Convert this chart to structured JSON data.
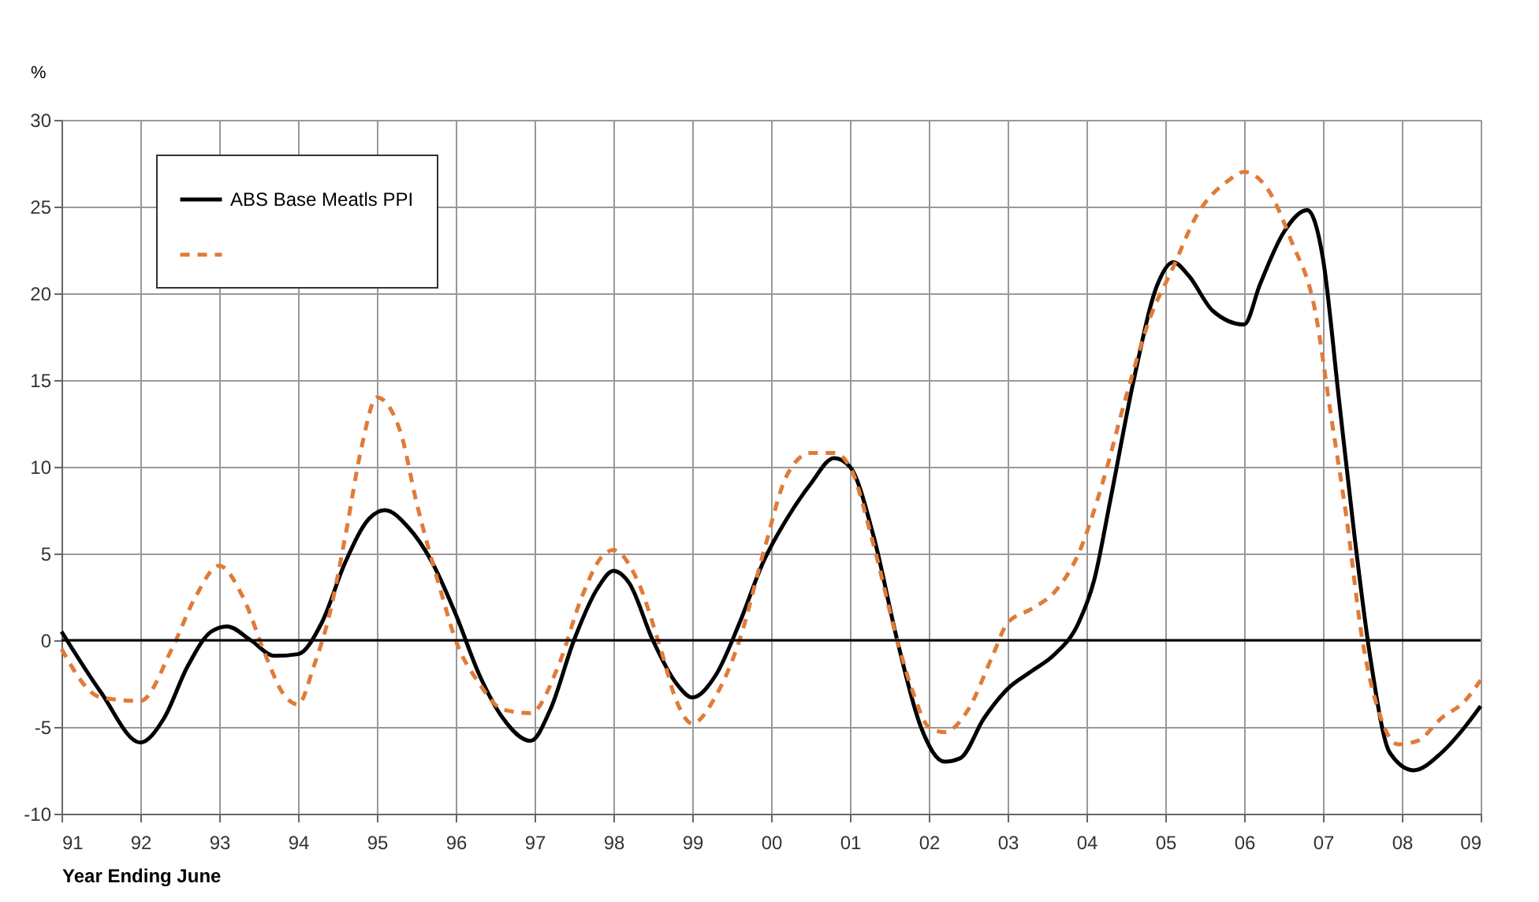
{
  "chart_data": {
    "type": "line",
    "xlabel": "Year Ending June",
    "ylabel": "%",
    "xlim": [
      1991,
      2009
    ],
    "xticks": [
      {
        "value": 1991,
        "label": "91"
      },
      {
        "value": 1992,
        "label": "92"
      },
      {
        "value": 1993,
        "label": "93"
      },
      {
        "value": 1994,
        "label": "94"
      },
      {
        "value": 1995,
        "label": "95"
      },
      {
        "value": 1996,
        "label": "96"
      },
      {
        "value": 1997,
        "label": "97"
      },
      {
        "value": 1998,
        "label": "98"
      },
      {
        "value": 1999,
        "label": "99"
      },
      {
        "value": 2000,
        "label": "00"
      },
      {
        "value": 2001,
        "label": "01"
      },
      {
        "value": 2002,
        "label": "02"
      },
      {
        "value": 2003,
        "label": "03"
      },
      {
        "value": 2004,
        "label": "04"
      },
      {
        "value": 2005,
        "label": "05"
      },
      {
        "value": 2006,
        "label": "06"
      },
      {
        "value": 2007,
        "label": "07"
      },
      {
        "value": 2008,
        "label": "08"
      },
      {
        "value": 2009,
        "label": "09"
      }
    ],
    "ylim": [
      -10,
      30
    ],
    "yticks": [
      -10,
      -5,
      0,
      5,
      10,
      15,
      20,
      25,
      30
    ],
    "grid": true,
    "legend": "top left",
    "marker": "none",
    "ref_lines": [
      {
        "axis": "y",
        "value": 0,
        "color": "#000000"
      }
    ],
    "series": [
      {
        "name": "ABS Base Meatls PPI",
        "color": "#000000",
        "line_style": "solid",
        "x": [
          1991.0,
          1991.5,
          1992.0,
          1992.3,
          1992.6,
          1992.9,
          1993.1,
          1993.4,
          1993.7,
          1994.0,
          1994.3,
          1994.6,
          1994.9,
          1995.1,
          1995.4,
          1995.7,
          1996.0,
          1996.3,
          1996.6,
          1996.95,
          1997.2,
          1997.5,
          1997.8,
          1998.0,
          1998.2,
          1998.5,
          1998.8,
          1999.0,
          1999.3,
          1999.6,
          1999.9,
          2000.2,
          2000.5,
          2000.8,
          2001.0,
          2001.3,
          2001.6,
          2001.9,
          2002.2,
          2002.4,
          2002.7,
          2003.0,
          2003.3,
          2003.6,
          2003.9,
          2004.1,
          2004.3,
          2004.6,
          2004.9,
          2005.1,
          2005.3,
          2005.6,
          2006.0,
          2006.2,
          2006.5,
          2006.8,
          2007.0,
          2007.2,
          2007.4,
          2007.6,
          2007.85,
          2008.15,
          2008.5,
          2008.8,
          2009.0
        ],
        "values": [
          0.5,
          -3,
          -5.9,
          -4.5,
          -1.5,
          0.5,
          0.8,
          0,
          -0.9,
          -0.8,
          1,
          4.5,
          7,
          7.5,
          6.5,
          4.5,
          1.5,
          -2,
          -4.5,
          -5.8,
          -4,
          0,
          3,
          4,
          3.3,
          0,
          -2.5,
          -3.3,
          -2,
          1,
          4.5,
          7,
          9,
          10.5,
          10,
          6,
          0,
          -5,
          -7,
          -6.8,
          -4.5,
          -2.8,
          -1.8,
          -0.8,
          1,
          3.5,
          8,
          15,
          20.5,
          21.8,
          21,
          19,
          18.2,
          20.5,
          23.5,
          24.8,
          22,
          14,
          6,
          -1,
          -6.5,
          -7.5,
          -6.5,
          -5,
          -3.8
        ]
      },
      {
        "color": "#e07b39",
        "line_style": "dashed",
        "x": [
          1991.0,
          1991.5,
          1992.0,
          1992.4,
          1992.7,
          1993.0,
          1993.3,
          1993.6,
          1993.8,
          1994.0,
          1994.2,
          1994.4,
          1994.6,
          1994.8,
          1995.0,
          1995.3,
          1995.5,
          1995.8,
          1996.0,
          1996.3,
          1996.6,
          1996.95,
          1997.3,
          1997.6,
          1997.85,
          1998.0,
          1998.3,
          1998.6,
          1998.8,
          1999.0,
          1999.3,
          1999.6,
          1999.9,
          2000.2,
          2000.5,
          2000.8,
          2001.0,
          2001.3,
          2001.6,
          2001.8,
          2002.0,
          2002.2,
          2002.5,
          2002.8,
          2003.0,
          2003.3,
          2003.6,
          2003.9,
          2004.2,
          2004.5,
          2004.8,
          2005.1,
          2005.4,
          2005.8,
          2006.0,
          2006.3,
          2006.6,
          2006.9,
          2007.1,
          2007.3,
          2007.5,
          2007.7,
          2007.95,
          2008.2,
          2008.5,
          2008.8,
          2009.0
        ],
        "values": [
          -0.5,
          -3.3,
          -3.5,
          -0.5,
          2.5,
          4.3,
          2.5,
          -1,
          -3,
          -3.7,
          -1.5,
          1.5,
          6,
          11,
          14,
          12,
          8,
          3,
          0,
          -2.5,
          -4,
          -4.2,
          -1.5,
          2.5,
          4.8,
          5.2,
          3.5,
          -0.5,
          -3.5,
          -4.8,
          -3.2,
          0,
          5,
          9.5,
          10.8,
          10.8,
          10,
          5.5,
          0,
          -3,
          -5,
          -5.3,
          -4,
          -1,
          1,
          1.8,
          2.8,
          5,
          9,
          14,
          18.5,
          21.5,
          24.5,
          26.5,
          27,
          26,
          23,
          19,
          13,
          7,
          0,
          -4,
          -6,
          -5.8,
          -4.5,
          -3.5,
          -2.3
        ]
      }
    ]
  }
}
